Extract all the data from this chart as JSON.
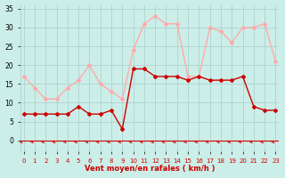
{
  "hours": [
    0,
    1,
    2,
    3,
    4,
    5,
    6,
    7,
    8,
    9,
    10,
    11,
    12,
    13,
    14,
    15,
    16,
    17,
    18,
    19,
    20,
    21,
    22,
    23
  ],
  "vent_moyen": [
    7,
    7,
    7,
    7,
    7,
    9,
    7,
    7,
    8,
    3,
    19,
    19,
    17,
    17,
    17,
    16,
    17,
    16,
    16,
    16,
    17,
    9,
    8,
    8
  ],
  "rafales": [
    17,
    14,
    11,
    11,
    14,
    16,
    20,
    15,
    13,
    11,
    24,
    31,
    33,
    31,
    31,
    17,
    17,
    30,
    29,
    26,
    30,
    30,
    31,
    21
  ],
  "color_moyen": "#cc0000",
  "color_rafales": "#ffaaaa",
  "bg_color": "#cceee8",
  "grid_color": "#aacccc",
  "xlabel": "Vent moyen/en rafales ( km/h )",
  "ylim": [
    -3,
    36
  ],
  "yticks": [
    0,
    5,
    10,
    15,
    20,
    25,
    30,
    35
  ],
  "xlim": [
    -0.3,
    23.3
  ]
}
